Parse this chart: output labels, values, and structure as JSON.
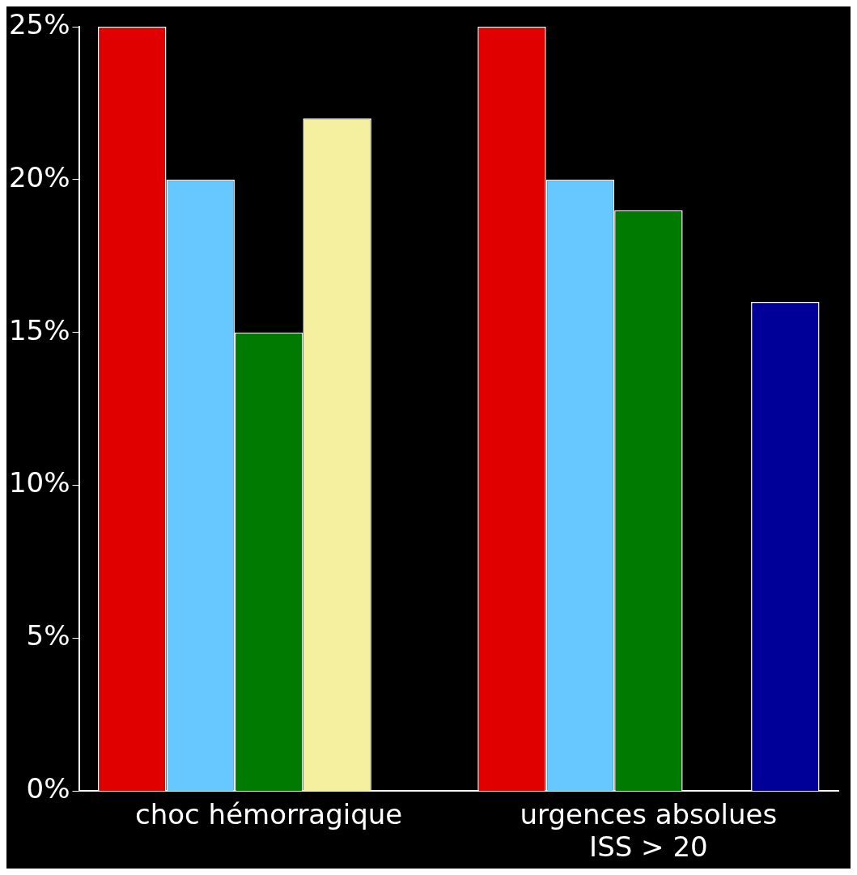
{
  "chart_data": {
    "type": "bar",
    "categories": [
      "choc hémorragique",
      "urgences absolues\nISS > 20"
    ],
    "series": [
      {
        "color": "#e00000",
        "values": [
          25,
          25
        ]
      },
      {
        "color": "#66c8ff",
        "values": [
          20,
          20
        ]
      },
      {
        "color": "#007a00",
        "values": [
          15,
          19
        ]
      },
      {
        "color": "#f5f0a0",
        "values": [
          22,
          0
        ]
      },
      {
        "color": "#000099",
        "values": [
          null,
          16
        ]
      }
    ],
    "ylim": [
      0,
      25
    ],
    "yticks": [
      {
        "value": 0,
        "label": "0%"
      },
      {
        "value": 5,
        "label": "5%"
      },
      {
        "value": 10,
        "label": "10%"
      },
      {
        "value": 15,
        "label": "15%"
      },
      {
        "value": 20,
        "label": "20%"
      },
      {
        "value": 25,
        "label": "25%"
      }
    ],
    "grid": false,
    "legend": false
  }
}
